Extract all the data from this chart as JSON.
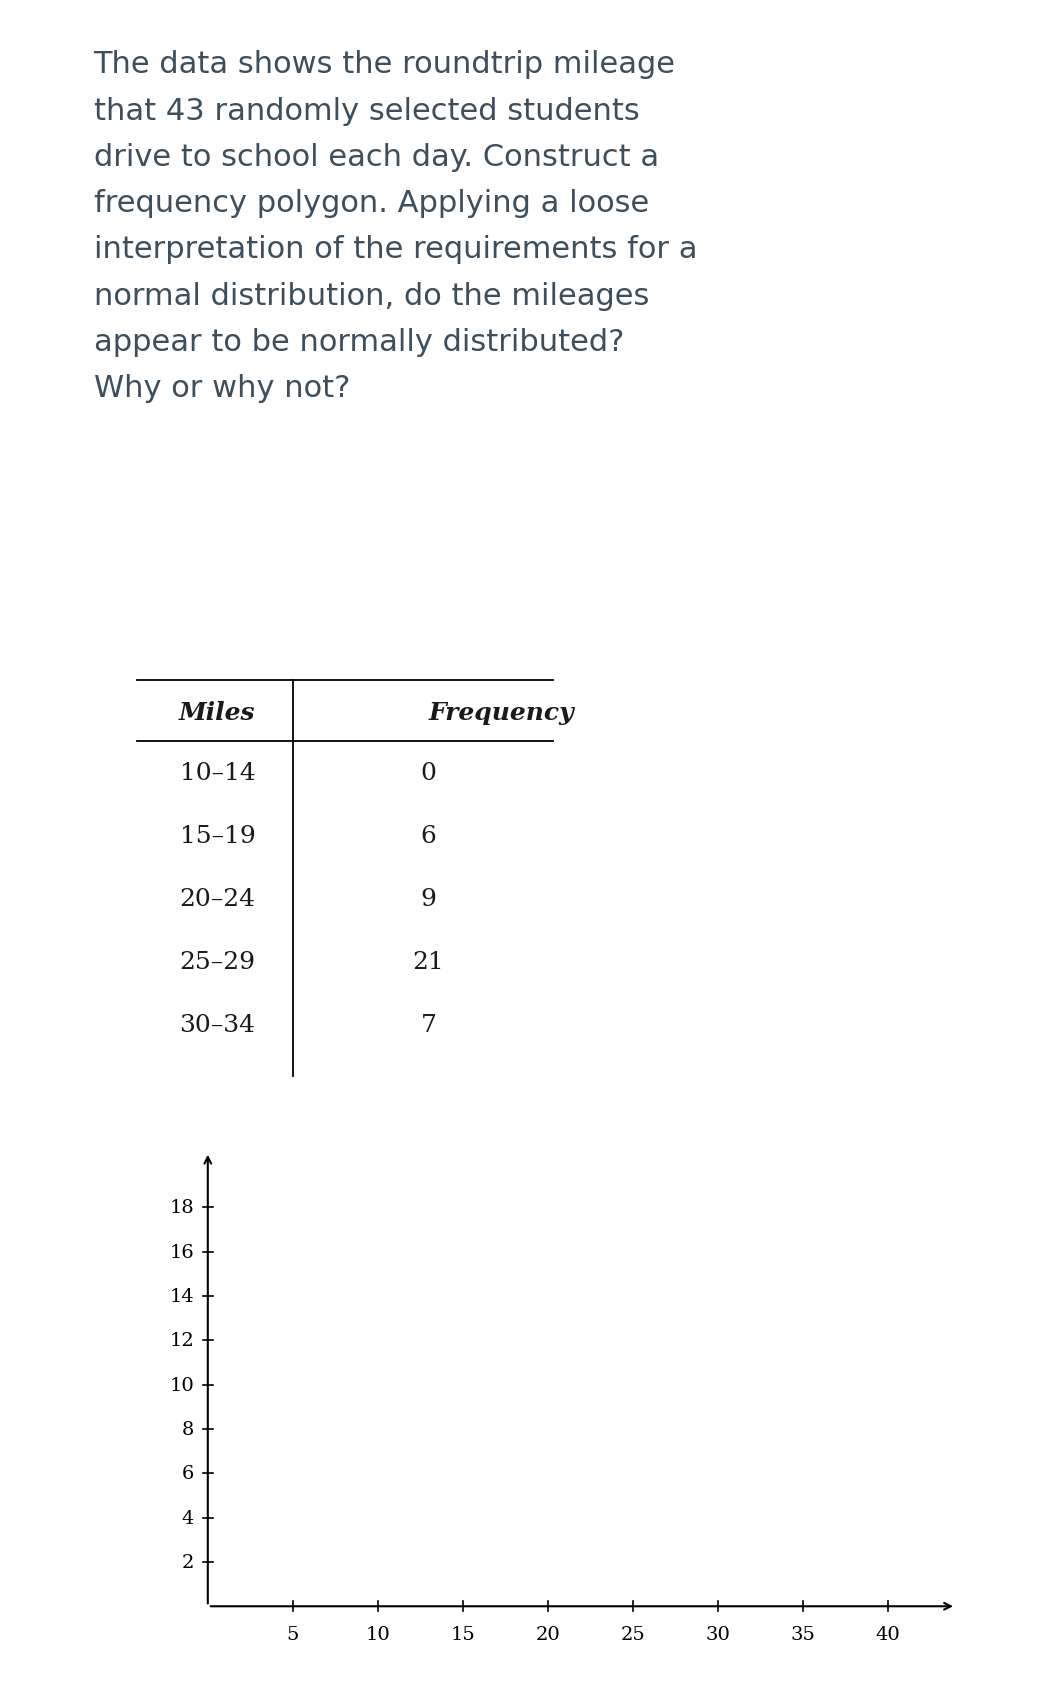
{
  "paragraph_text": "The data shows the roundtrip mileage\nthat 43 randomly selected students\ndrive to school each day. Construct a\nfrequency polygon. Applying a loose\ninterpretation of the requirements for a\nnormal distribution, do the mileages\nappear to be normally distributed?\nWhy or why not?",
  "table_headers": [
    "Miles",
    "Frequency"
  ],
  "table_rows": [
    [
      "10–14",
      "0"
    ],
    [
      "15–19",
      "6"
    ],
    [
      "20–24",
      "9"
    ],
    [
      "25–29",
      "21"
    ],
    [
      "30–34",
      "7"
    ]
  ],
  "x_ticks": [
    5,
    10,
    15,
    20,
    25,
    30,
    35,
    40
  ],
  "y_ticks": [
    2,
    4,
    6,
    8,
    10,
    12,
    14,
    16,
    18
  ],
  "xlim": [
    0,
    44
  ],
  "ylim": [
    0,
    20.5
  ],
  "text_color": "#3d4f5c",
  "table_text_color": "#1a1a1a",
  "paragraph_fontsize": 22,
  "table_fontsize": 18,
  "axis_fontsize": 14,
  "bg_color": "#ffffff"
}
